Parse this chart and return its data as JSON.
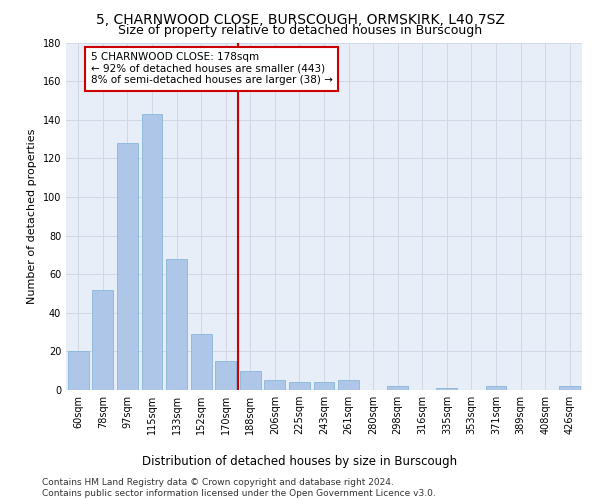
{
  "title1": "5, CHARNWOOD CLOSE, BURSCOUGH, ORMSKIRK, L40 7SZ",
  "title2": "Size of property relative to detached houses in Burscough",
  "xlabel": "Distribution of detached houses by size in Burscough",
  "ylabel": "Number of detached properties",
  "categories": [
    "60sqm",
    "78sqm",
    "97sqm",
    "115sqm",
    "133sqm",
    "152sqm",
    "170sqm",
    "188sqm",
    "206sqm",
    "225sqm",
    "243sqm",
    "261sqm",
    "280sqm",
    "298sqm",
    "316sqm",
    "335sqm",
    "353sqm",
    "371sqm",
    "389sqm",
    "408sqm",
    "426sqm"
  ],
  "values": [
    20,
    52,
    128,
    143,
    68,
    29,
    15,
    10,
    5,
    4,
    4,
    5,
    0,
    2,
    0,
    1,
    0,
    2,
    0,
    0,
    2
  ],
  "bar_color": "#aec6e8",
  "bar_edge_color": "#7bafd4",
  "vline_color": "#cc0000",
  "vline_x_index": 7,
  "annotation_box_text": "5 CHARNWOOD CLOSE: 178sqm\n← 92% of detached houses are smaller (443)\n8% of semi-detached houses are larger (38) →",
  "annotation_box_color": "#cc0000",
  "annotation_text_color": "#000000",
  "grid_color": "#d0d8e8",
  "bg_color": "#e8eef8",
  "ylim": [
    0,
    180
  ],
  "yticks": [
    0,
    20,
    40,
    60,
    80,
    100,
    120,
    140,
    160,
    180
  ],
  "footer_text": "Contains HM Land Registry data © Crown copyright and database right 2024.\nContains public sector information licensed under the Open Government Licence v3.0.",
  "title1_fontsize": 10,
  "title2_fontsize": 9,
  "xlabel_fontsize": 8.5,
  "ylabel_fontsize": 8,
  "tick_fontsize": 7,
  "annotation_fontsize": 7.5,
  "footer_fontsize": 6.5
}
